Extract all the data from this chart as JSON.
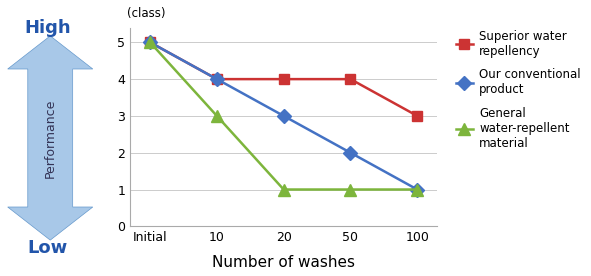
{
  "x_positions": [
    0,
    1,
    2,
    3,
    4
  ],
  "x_labels": [
    "Initial",
    "10",
    "20",
    "50",
    "100"
  ],
  "xlabel": "Number of washes",
  "ylabel_unit": "(class)",
  "ylim": [
    0,
    5.4
  ],
  "yticks": [
    0,
    1,
    2,
    3,
    4,
    5
  ],
  "series": [
    {
      "label": "Superior water\nrepellency",
      "values": [
        5,
        4,
        4,
        4,
        3
      ],
      "color": "#cc3333",
      "marker": "s",
      "linewidth": 1.8,
      "markersize": 7
    },
    {
      "label": "Our conventional\nproduct",
      "values": [
        5,
        4,
        3,
        2,
        1
      ],
      "color": "#4472c4",
      "marker": "D",
      "linewidth": 1.8,
      "markersize": 7
    },
    {
      "label": "General\nwater-repellent\nmaterial",
      "values": [
        5,
        3,
        1,
        1,
        1
      ],
      "color": "#7db53c",
      "marker": "^",
      "linewidth": 1.8,
      "markersize": 8
    }
  ],
  "high_label": "High",
  "low_label": "Low",
  "performance_label": "Performance",
  "arrow_color": "#a8c8e8",
  "arrow_edge_color": "#6699cc",
  "label_color": "#2255aa",
  "background_color": "#ffffff",
  "grid_color": "#cccccc"
}
